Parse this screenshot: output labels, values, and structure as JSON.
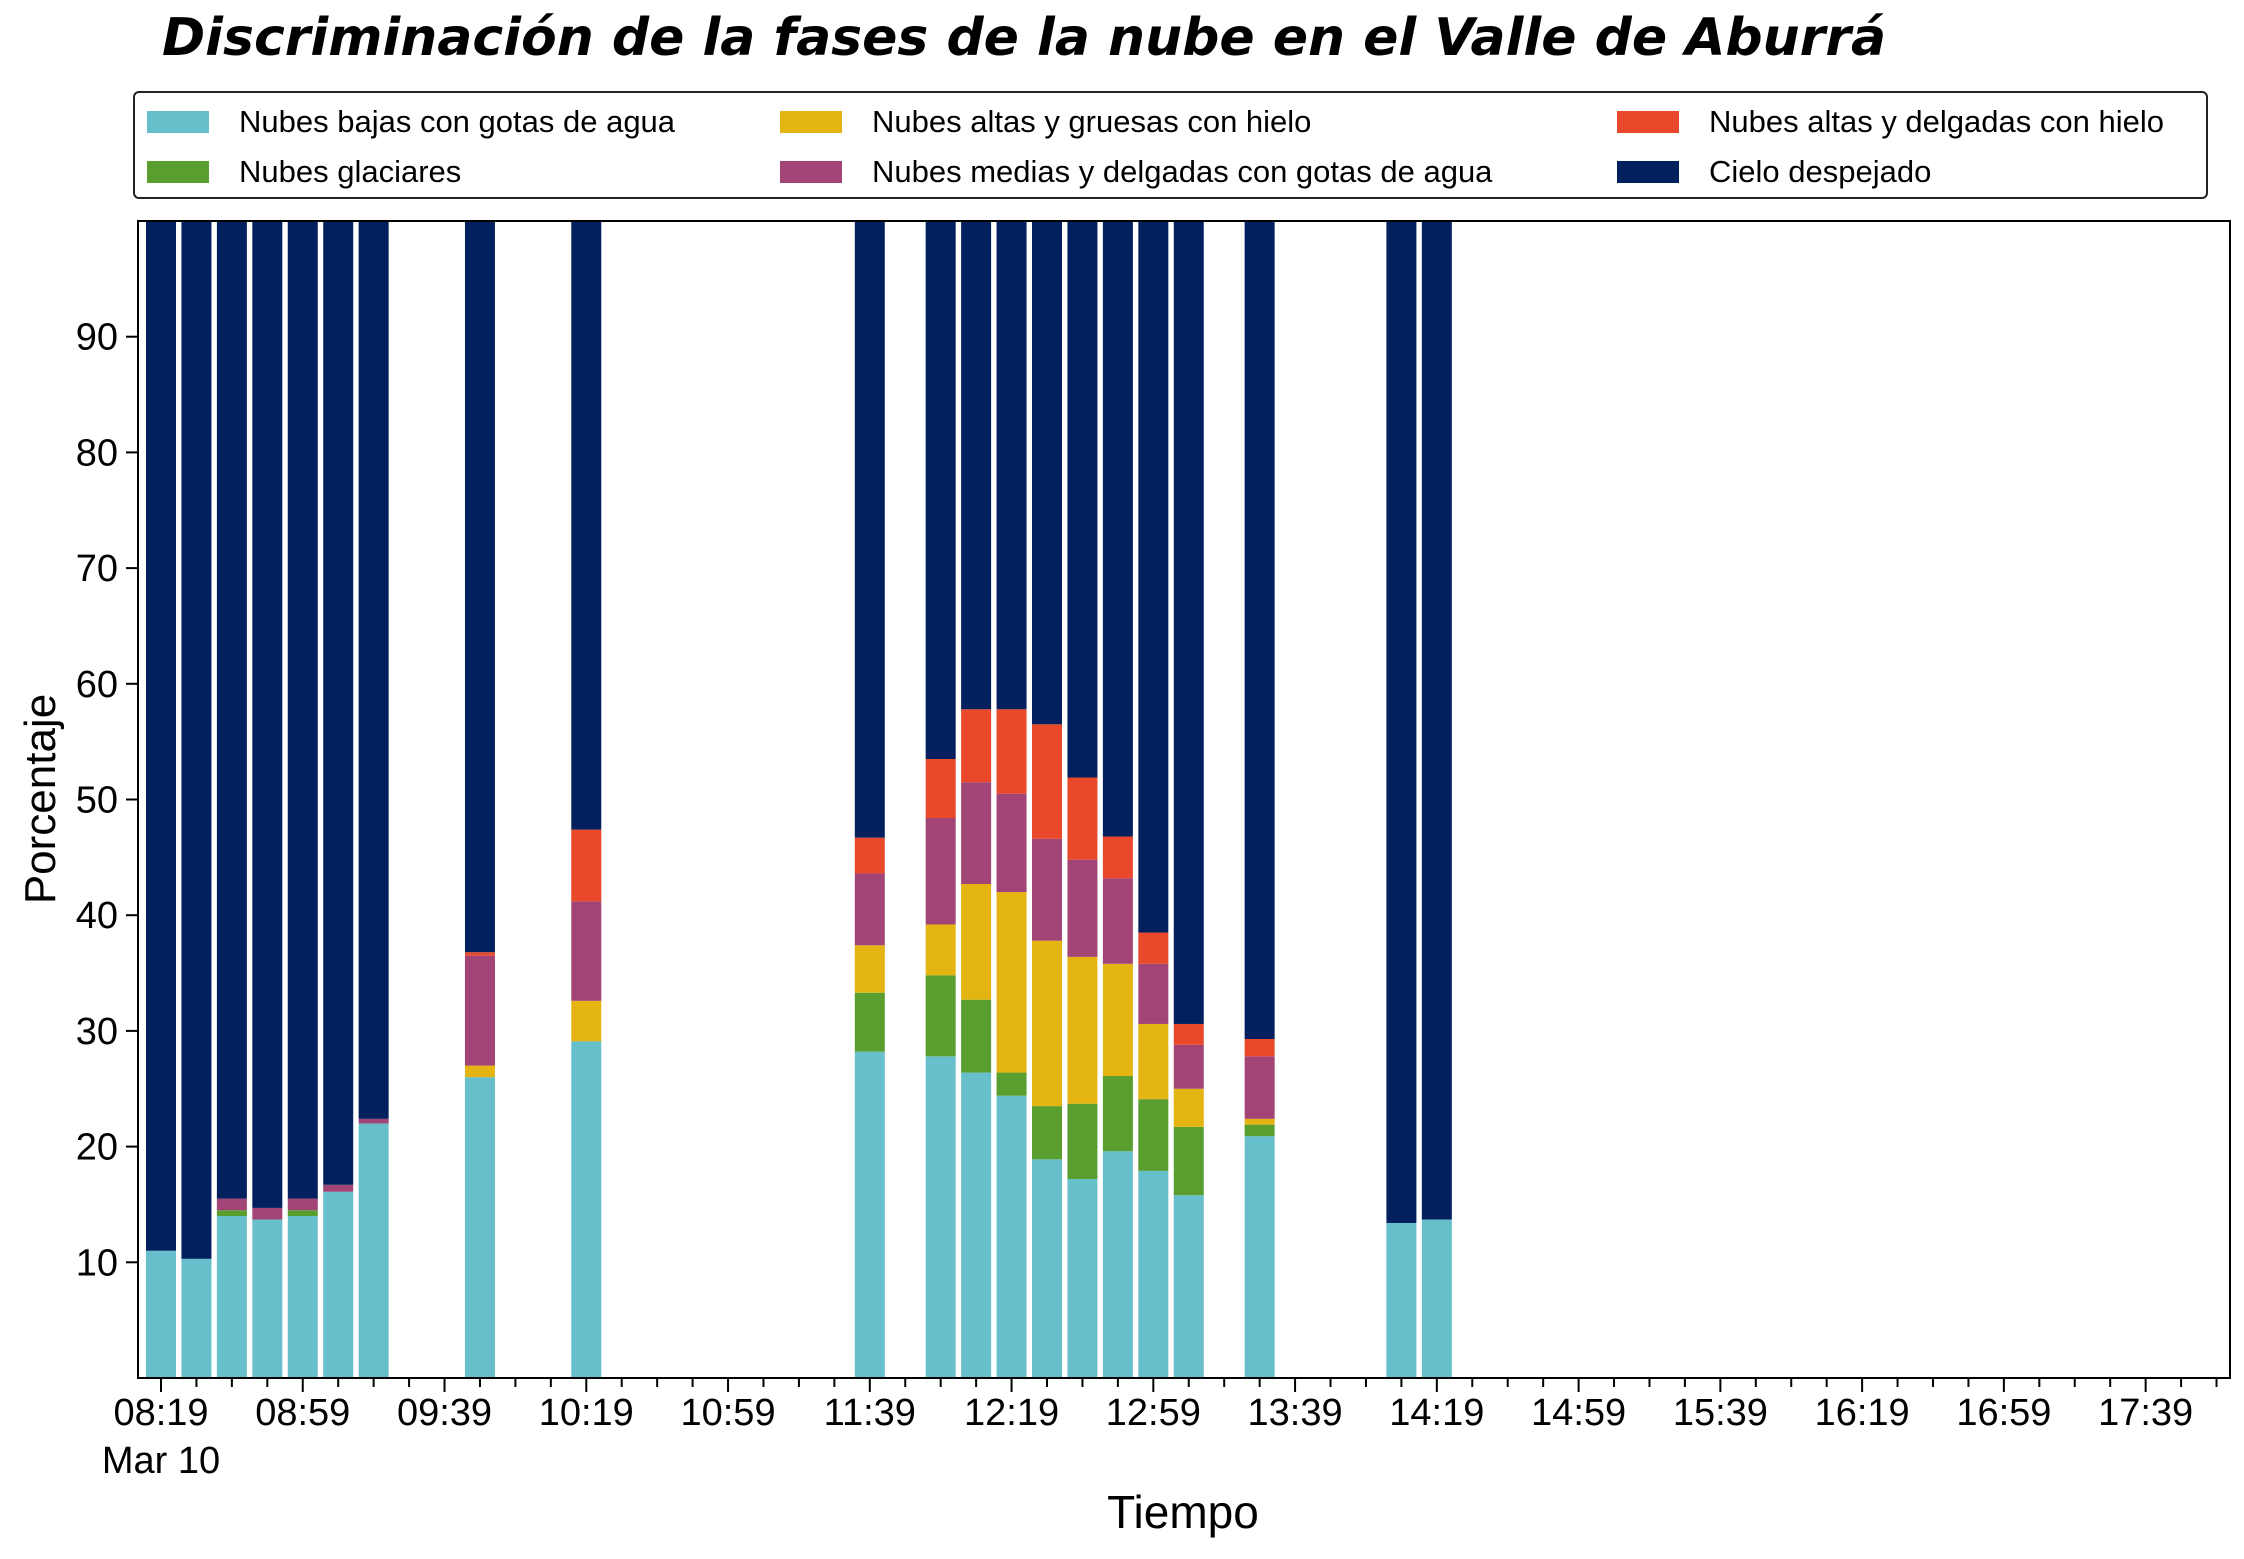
{
  "chart_data": {
    "type": "bar",
    "stacked": true,
    "title": "Discriminación de la fases de la nube en el Valle de Aburrá",
    "xlabel": "Tiempo",
    "ylabel": "Porcentaje",
    "ylim": [
      0,
      100
    ],
    "yticks": [
      10,
      20,
      30,
      40,
      50,
      60,
      70,
      80,
      90
    ],
    "xtick_labels": [
      "08:19",
      "08:59",
      "09:39",
      "10:19",
      "10:59",
      "11:39",
      "12:19",
      "12:59",
      "13:39",
      "14:19",
      "14:59",
      "15:39",
      "16:19",
      "16:59",
      "17:39"
    ],
    "x_first_label_date": "Mar 10",
    "x_start": "08:19",
    "x_end": "17:59",
    "grid": false,
    "legend_position": "top",
    "categories": [
      "08:19",
      "08:29",
      "08:39",
      "08:49",
      "08:59",
      "09:09",
      "09:19",
      "09:49",
      "10:19",
      "11:39",
      "11:59",
      "12:09",
      "12:19",
      "12:29",
      "12:39",
      "12:49",
      "12:59",
      "13:09",
      "13:29",
      "14:09",
      "14:19"
    ],
    "series": [
      {
        "name": "Nubes bajas con gotas de agua",
        "color": "#67bfcb",
        "values": [
          11.0,
          10.3,
          14.0,
          13.7,
          14.0,
          16.1,
          22.0,
          26.0,
          29.1,
          28.2,
          27.8,
          26.4,
          24.4,
          18.9,
          17.2,
          19.6,
          17.9,
          15.8,
          20.9,
          13.4,
          13.7
        ]
      },
      {
        "name": "Nubes glaciares",
        "color": "#5a9e2f",
        "values": [
          0,
          0,
          0.5,
          0,
          0.5,
          0,
          0,
          0,
          0,
          5.1,
          7.0,
          6.3,
          2.0,
          4.6,
          6.5,
          6.5,
          6.2,
          5.9,
          1.0,
          0,
          0
        ]
      },
      {
        "name": "Nubes altas y gruesas con hielo",
        "color": "#e3b412",
        "values": [
          0,
          0,
          0,
          0,
          0,
          0,
          0,
          1.0,
          3.5,
          4.1,
          4.4,
          10.0,
          15.6,
          14.3,
          12.7,
          9.7,
          6.5,
          3.3,
          0.5,
          0,
          0
        ]
      },
      {
        "name": "Nubes medias y delgadas con gotas de agua",
        "color": "#a24476",
        "values": [
          0,
          0,
          1.0,
          1.0,
          1.0,
          0.6,
          0.4,
          9.5,
          8.6,
          6.2,
          9.2,
          8.8,
          8.5,
          8.8,
          8.4,
          7.4,
          5.2,
          3.8,
          5.4,
          0,
          0
        ]
      },
      {
        "name": "Nubes altas y delgadas con hielo",
        "color": "#ea482b",
        "values": [
          0,
          0,
          0,
          0,
          0,
          0,
          0,
          0.3,
          6.2,
          3.1,
          5.1,
          6.3,
          7.3,
          9.9,
          7.1,
          3.6,
          2.7,
          1.8,
          1.5,
          0,
          0
        ]
      },
      {
        "name": "Cielo despejado",
        "color": "#03205e",
        "values": [
          89.0,
          89.7,
          84.5,
          85.3,
          84.5,
          83.3,
          77.6,
          63.2,
          52.6,
          53.3,
          46.5,
          42.2,
          42.2,
          43.5,
          48.1,
          53.2,
          61.5,
          69.4,
          70.7,
          86.6,
          86.3
        ]
      }
    ]
  }
}
